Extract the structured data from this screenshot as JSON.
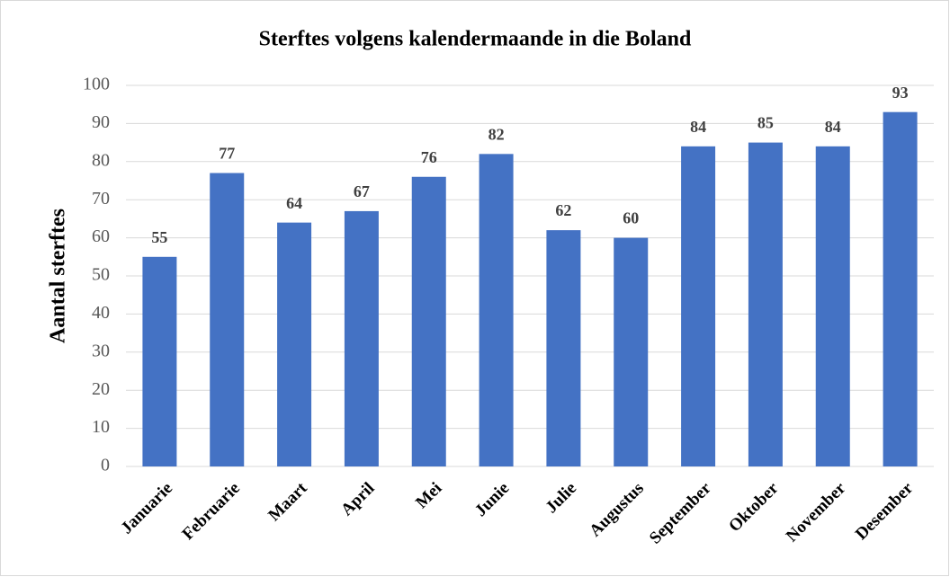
{
  "chart_data": {
    "type": "bar",
    "title": "Sterftes volgens kalendermaande in die Boland",
    "y_label": "Aantal sterftes",
    "categories": [
      "Januarie",
      "Februarie",
      "Maart",
      "April",
      "Mei",
      "Junie",
      "Julie",
      "Augustus",
      "September",
      "Oktober",
      "November",
      "Desember"
    ],
    "values": [
      55,
      77,
      64,
      67,
      76,
      82,
      62,
      60,
      84,
      85,
      84,
      93
    ],
    "color": "#4472c4",
    "ylim": [
      0,
      100
    ],
    "yticks": [
      0,
      10,
      20,
      30,
      40,
      50,
      60,
      70,
      80,
      90,
      100
    ],
    "grid": true
  }
}
